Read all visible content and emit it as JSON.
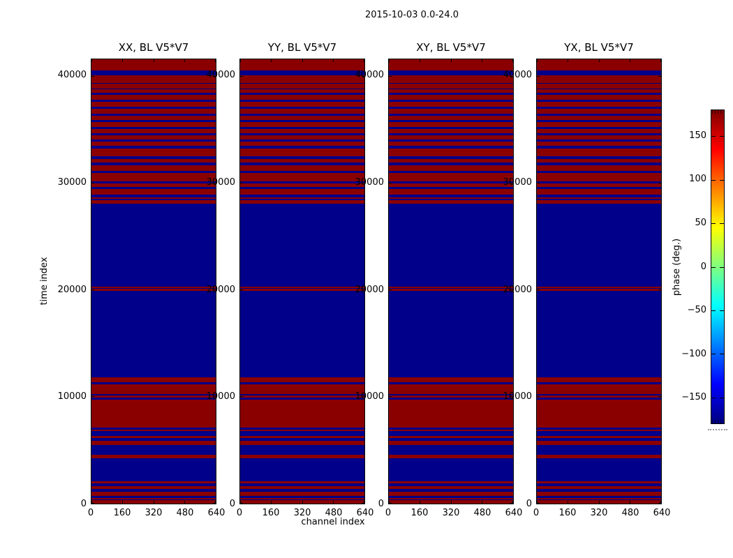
{
  "figure": {
    "suptitle": "2015-10-03 0.0-24.0"
  },
  "chart_data": {
    "type": "heatmap",
    "suptitle": "2015-10-03 0.0-24.0",
    "panels": [
      {
        "title": "XX, BL V5*V7"
      },
      {
        "title": "YY, BL V5*V7"
      },
      {
        "title": "XY, BL V5*V7"
      },
      {
        "title": "YX, BL V5*V7"
      }
    ],
    "xlabel": "channel index",
    "ylabel": "time index",
    "x_ticks": [
      "0",
      "160",
      "320",
      "480",
      "640"
    ],
    "x_tick_values": [
      0,
      160,
      320,
      480,
      640
    ],
    "x_range": [
      0,
      640
    ],
    "y_ticks": [
      "0",
      "10000",
      "20000",
      "30000",
      "40000"
    ],
    "y_tick_values": [
      0,
      10000,
      20000,
      30000,
      40000
    ],
    "y_range": [
      0,
      41590
    ],
    "colorbar": {
      "label": "phase (deg.)",
      "ticks": [
        "150",
        "100",
        "50",
        "0",
        "−50",
        "−100",
        "−150"
      ],
      "tick_values": [
        150,
        100,
        50,
        0,
        -50,
        -100,
        -150
      ],
      "range": [
        -180,
        180
      ],
      "colormap": "jet"
    },
    "colors": {
      "phase_high_red": "#8a0000",
      "phase_low_blue": "#00008a"
    },
    "bands_shared_across_panels": true,
    "background_phase_deg": 180,
    "blue_band_phase_deg": -180,
    "blue_bands_time_index": [
      [
        40100,
        40560
      ],
      [
        39290,
        39390
      ],
      [
        38770,
        38870
      ],
      [
        38280,
        38480
      ],
      [
        37590,
        37820
      ],
      [
        36940,
        37170
      ],
      [
        36280,
        36510
      ],
      [
        35690,
        35920
      ],
      [
        35070,
        35270
      ],
      [
        34480,
        34680
      ],
      [
        33890,
        34090
      ],
      [
        33240,
        33500
      ],
      [
        32250,
        32510
      ],
      [
        31660,
        31920
      ],
      [
        30940,
        31140
      ],
      [
        29960,
        30160
      ],
      [
        29470,
        29630
      ],
      [
        28650,
        28910
      ],
      [
        28420,
        28520
      ],
      [
        20330,
        28060
      ],
      [
        20090,
        20160
      ],
      [
        11820,
        19940
      ],
      [
        11160,
        11360
      ],
      [
        10090,
        10250
      ],
      [
        9720,
        9920
      ],
      [
        6910,
        7100
      ],
      [
        6320,
        6780
      ],
      [
        5860,
        6120
      ],
      [
        4550,
        5470
      ],
      [
        2080,
        4220
      ],
      [
        1600,
        1870
      ],
      [
        1080,
        1340
      ],
      [
        490,
        690
      ],
      [
        295,
        395
      ]
    ]
  }
}
